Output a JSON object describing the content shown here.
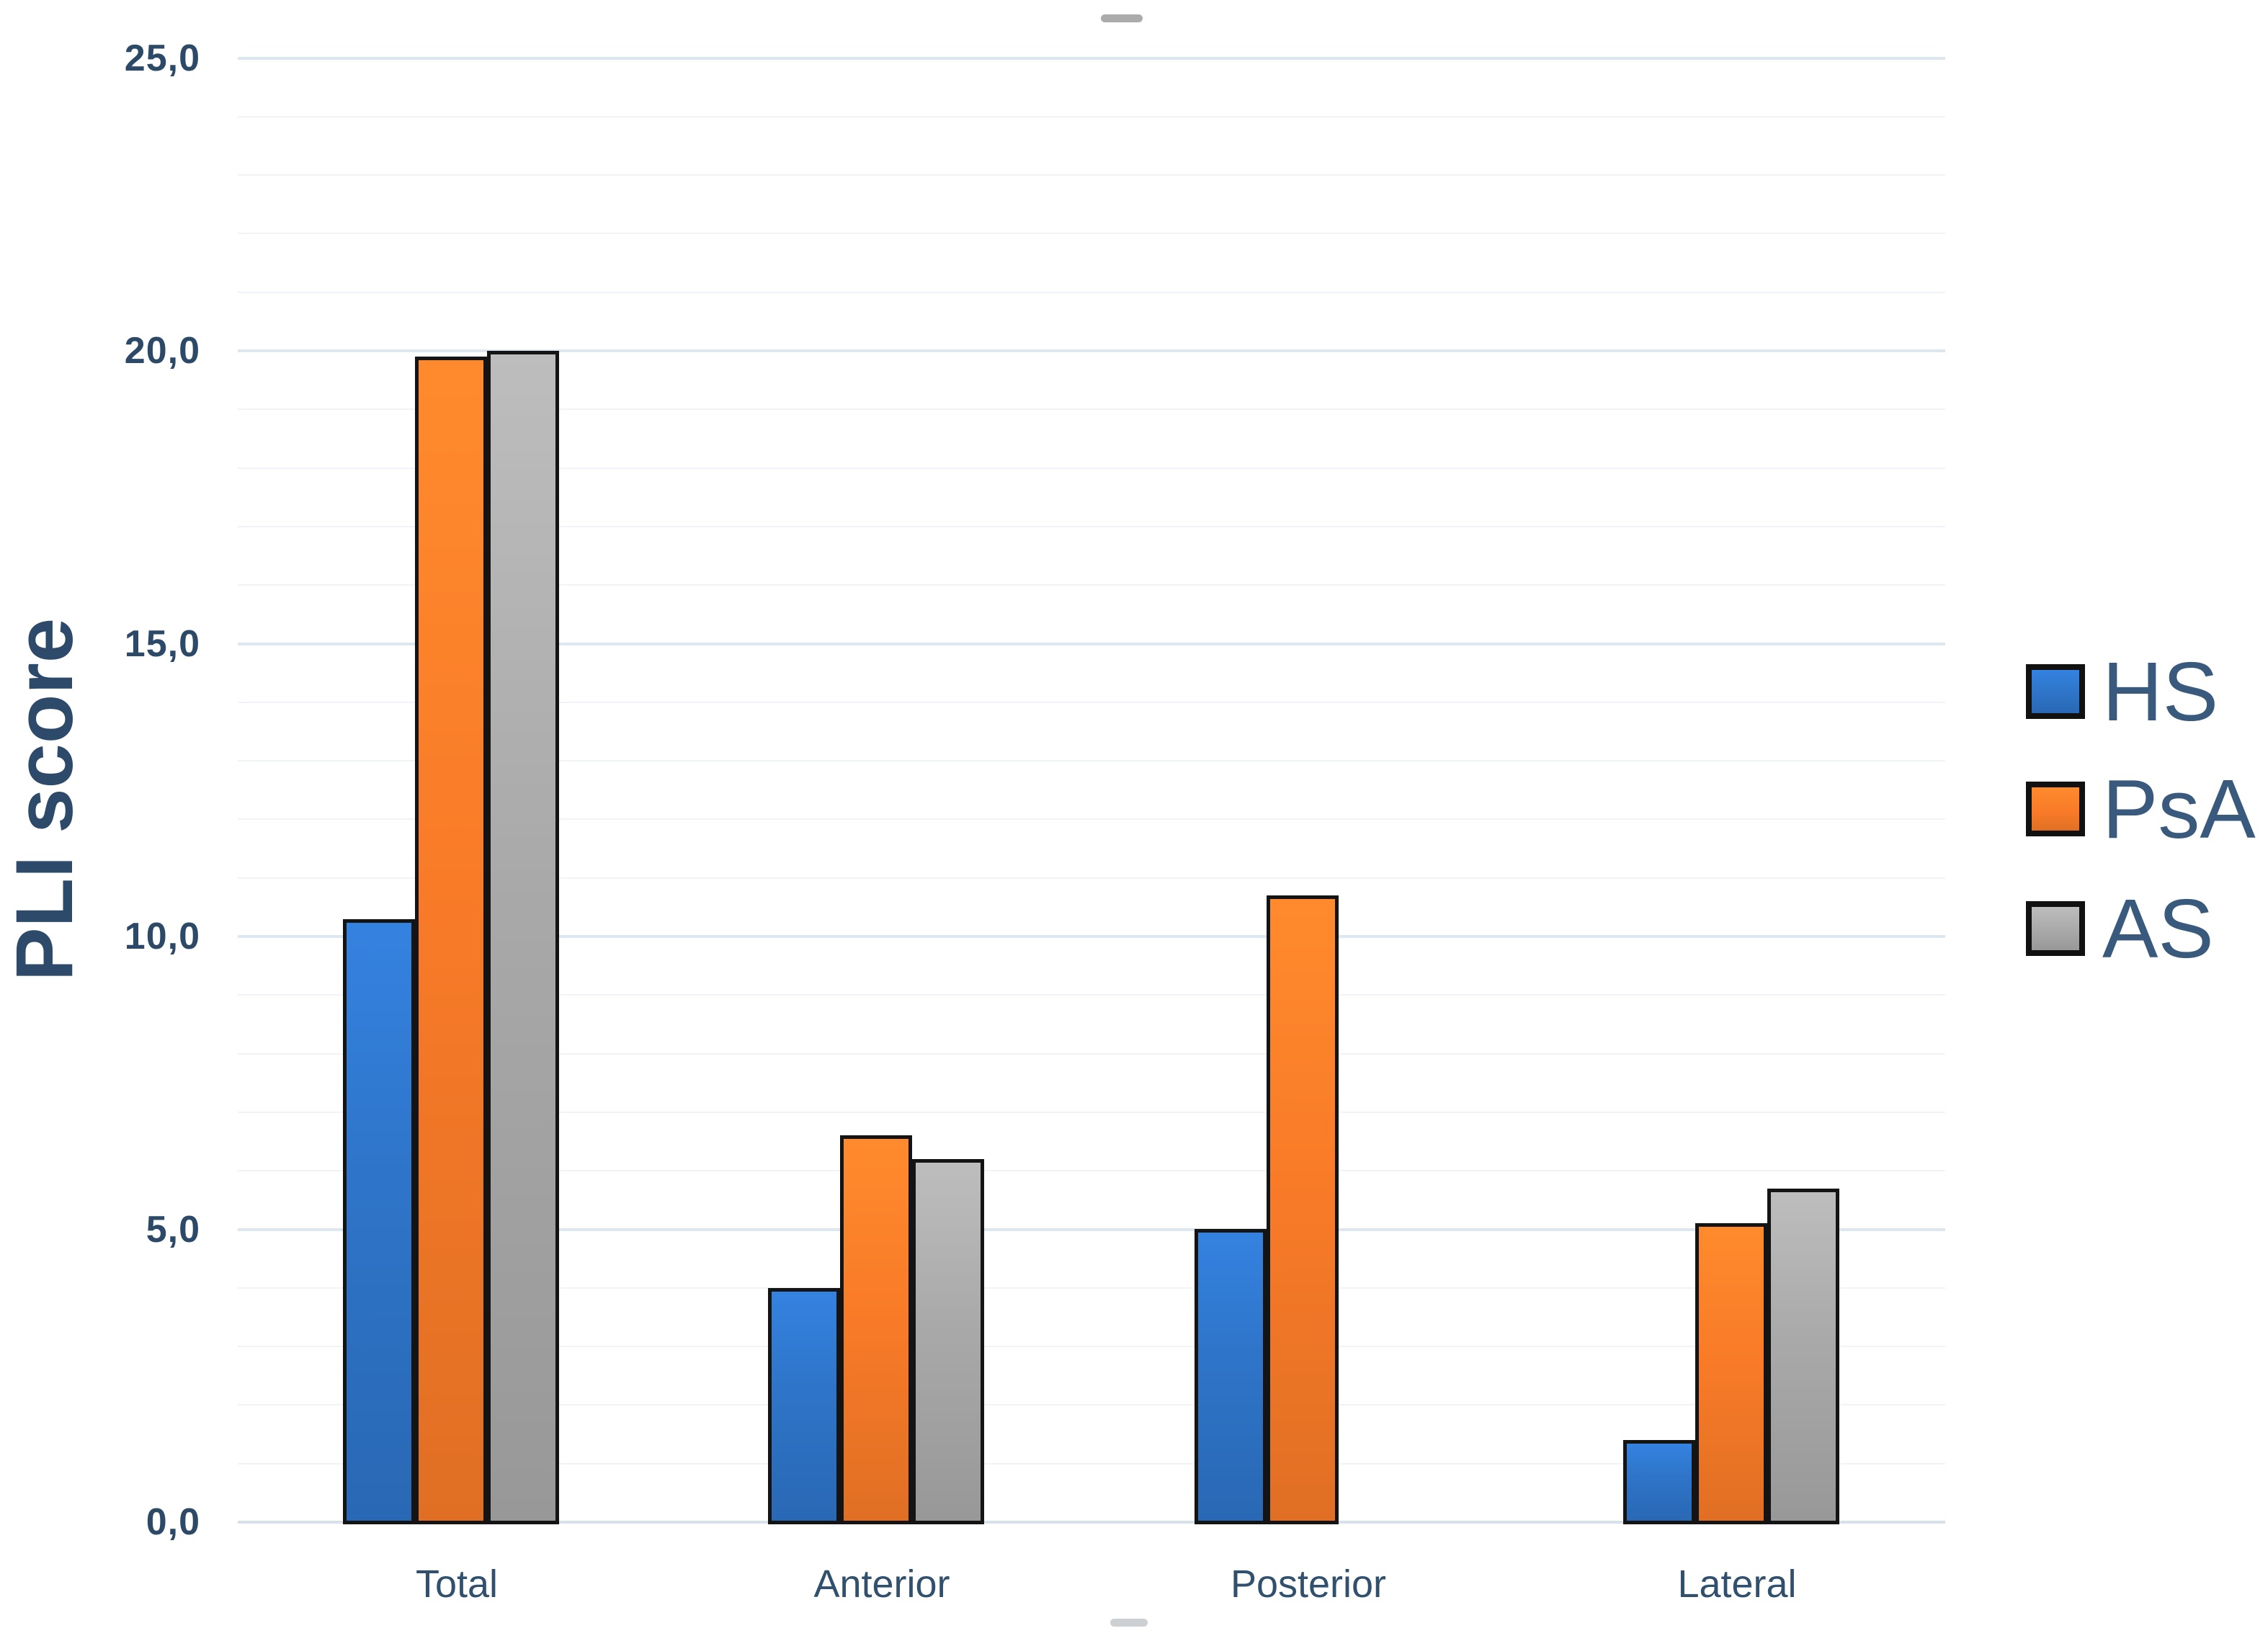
{
  "chart_data": {
    "type": "bar",
    "title": "",
    "categories": [
      "Total",
      "Anterior",
      "Posterior",
      "Lateral"
    ],
    "series": [
      {
        "name": "HS",
        "color": "#2E74C8",
        "values": [
          10.3,
          4.0,
          5.0,
          1.4
        ]
      },
      {
        "name": "PsA",
        "color": "#F97B28",
        "values": [
          19.9,
          6.6,
          10.7,
          5.1
        ]
      },
      {
        "name": "AS",
        "color": "#A9A9A9",
        "values": [
          20.0,
          6.2,
          0.0,
          5.7
        ]
      }
    ],
    "xlabel": "",
    "ylabel": "PLI score",
    "ylim": [
      0,
      25
    ],
    "ymajor_step": 5,
    "yminor_step": 1,
    "ytick_labels": [
      "0,0",
      "5,0",
      "10,0",
      "15,0",
      "20,0",
      "25,0"
    ],
    "decimal_separator": ",",
    "grid": "horizontal major+minor",
    "legend_position": "right",
    "legend_labels": [
      "HS",
      "PsA",
      "AS"
    ],
    "bar_outline_color": "#141414",
    "text_color": "#2d4a6a",
    "major_grid_color": "#dde7f1",
    "minor_grid_color": "#f0f4f8"
  }
}
